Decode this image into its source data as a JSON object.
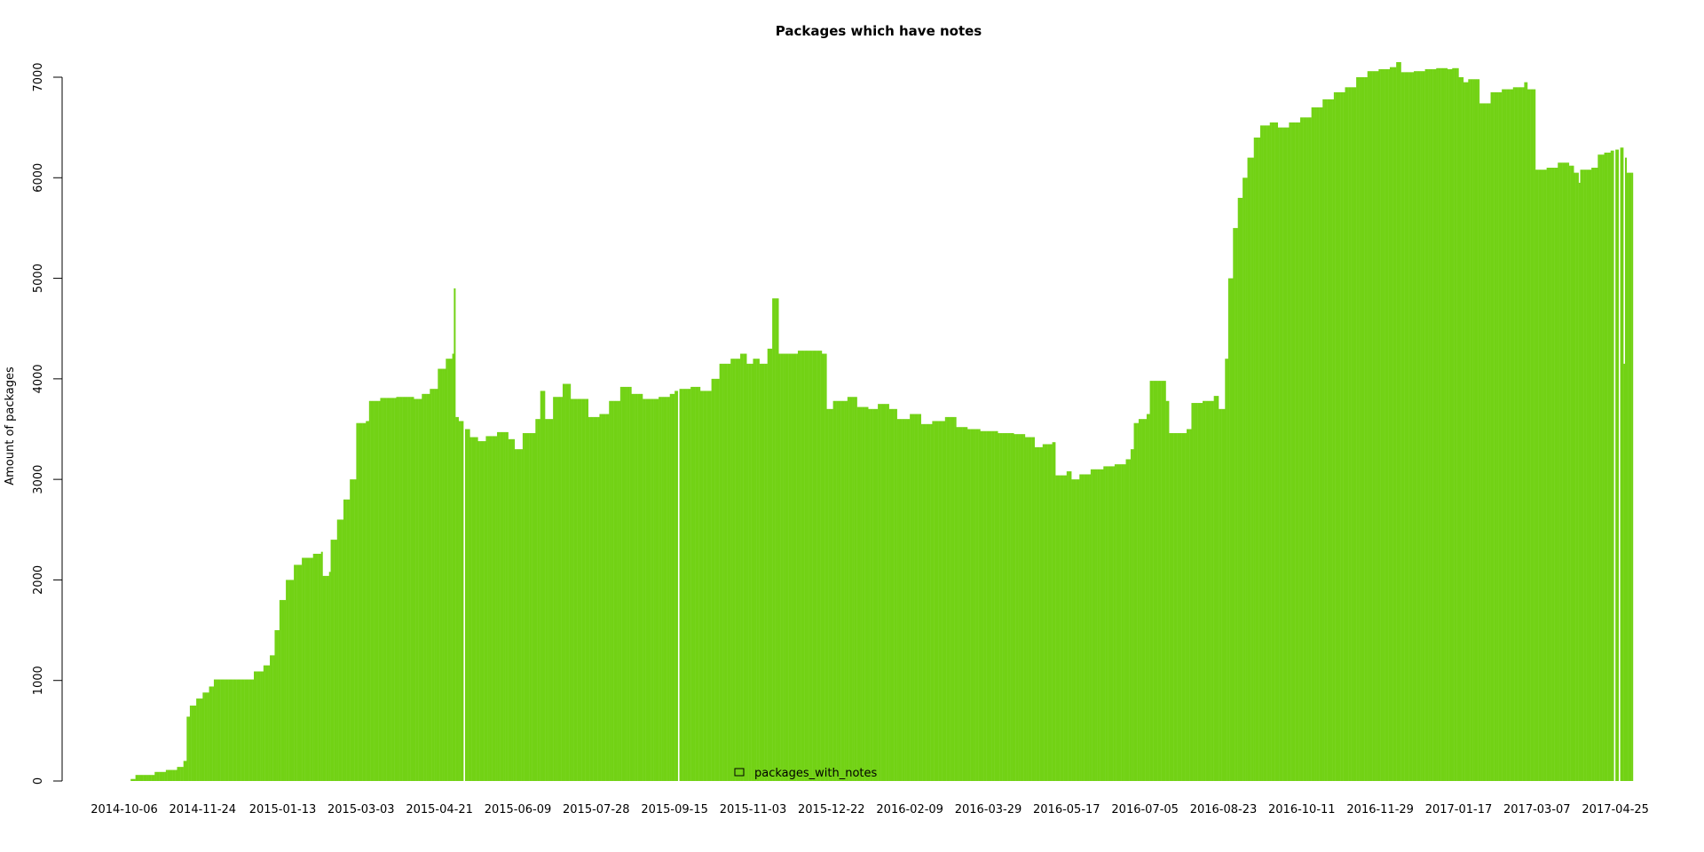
{
  "chart_data": {
    "type": "bar",
    "title": "Packages which have notes",
    "xlabel": "",
    "ylabel": "Amount of packages",
    "ylim": [
      0,
      7000
    ],
    "y_ticks": [
      0,
      1000,
      2000,
      3000,
      4000,
      5000,
      6000,
      7000
    ],
    "x_ticks": [
      "2014-10-06",
      "2014-11-24",
      "2015-01-13",
      "2015-03-03",
      "2015-04-21",
      "2015-06-09",
      "2015-07-28",
      "2015-09-15",
      "2015-11-03",
      "2015-12-22",
      "2016-02-09",
      "2016-03-29",
      "2016-05-17",
      "2016-07-05",
      "2016-08-23",
      "2016-10-11",
      "2016-11-29",
      "2017-01-17",
      "2017-03-07",
      "2017-04-25"
    ],
    "x_range": [
      "2014-10-06",
      "2017-05-06"
    ],
    "bar_color": "#72d215",
    "grid": false,
    "legend": {
      "position": "bottom-center",
      "entries": [
        "packages_with_notes"
      ]
    },
    "series": [
      {
        "name": "packages_with_notes",
        "points": [
          [
            "2014-10-06",
            0
          ],
          [
            "2014-10-10",
            20
          ],
          [
            "2014-10-13",
            60
          ],
          [
            "2014-10-20",
            60
          ],
          [
            "2014-10-25",
            90
          ],
          [
            "2014-11-01",
            110
          ],
          [
            "2014-11-08",
            140
          ],
          [
            "2014-11-12",
            200
          ],
          [
            "2014-11-14",
            640
          ],
          [
            "2014-11-16",
            750
          ],
          [
            "2014-11-20",
            820
          ],
          [
            "2014-11-24",
            880
          ],
          [
            "2014-11-28",
            940
          ],
          [
            "2014-12-01",
            1010
          ],
          [
            "2014-12-23",
            1010
          ],
          [
            "2014-12-26",
            1090
          ],
          [
            "2015-01-01",
            1150
          ],
          [
            "2015-01-05",
            1250
          ],
          [
            "2015-01-08",
            1500
          ],
          [
            "2015-01-11",
            1800
          ],
          [
            "2015-01-15",
            2000
          ],
          [
            "2015-01-20",
            2150
          ],
          [
            "2015-01-25",
            2220
          ],
          [
            "2015-02-01",
            2260
          ],
          [
            "2015-02-06",
            2280
          ],
          [
            "2015-02-07",
            2040
          ],
          [
            "2015-02-11",
            2080
          ],
          [
            "2015-02-12",
            2400
          ],
          [
            "2015-02-16",
            2600
          ],
          [
            "2015-02-20",
            2800
          ],
          [
            "2015-02-24",
            3000
          ],
          [
            "2015-02-28",
            3560
          ],
          [
            "2015-03-06",
            3580
          ],
          [
            "2015-03-08",
            3780
          ],
          [
            "2015-03-15",
            3810
          ],
          [
            "2015-03-25",
            3820
          ],
          [
            "2015-04-05",
            3800
          ],
          [
            "2015-04-10",
            3850
          ],
          [
            "2015-04-15",
            3900
          ],
          [
            "2015-04-20",
            4100
          ],
          [
            "2015-04-25",
            4200
          ],
          [
            "2015-04-29",
            4250
          ],
          [
            "2015-04-30",
            4900
          ],
          [
            "2015-05-01",
            3620
          ],
          [
            "2015-05-03",
            3580
          ],
          [
            "2015-05-06",
            0
          ],
          [
            "2015-05-07",
            3500
          ],
          [
            "2015-05-10",
            3420
          ],
          [
            "2015-05-15",
            3380
          ],
          [
            "2015-05-20",
            3430
          ],
          [
            "2015-05-27",
            3470
          ],
          [
            "2015-06-03",
            3400
          ],
          [
            "2015-06-07",
            3300
          ],
          [
            "2015-06-12",
            3460
          ],
          [
            "2015-06-20",
            3600
          ],
          [
            "2015-06-23",
            3880
          ],
          [
            "2015-06-26",
            3600
          ],
          [
            "2015-07-01",
            3820
          ],
          [
            "2015-07-07",
            3950
          ],
          [
            "2015-07-12",
            3800
          ],
          [
            "2015-07-20",
            3800
          ],
          [
            "2015-07-23",
            3620
          ],
          [
            "2015-07-30",
            3650
          ],
          [
            "2015-08-05",
            3780
          ],
          [
            "2015-08-12",
            3920
          ],
          [
            "2015-08-19",
            3850
          ],
          [
            "2015-08-26",
            3800
          ],
          [
            "2015-09-05",
            3820
          ],
          [
            "2015-09-12",
            3850
          ],
          [
            "2015-09-15",
            3880
          ],
          [
            "2015-09-17",
            0
          ],
          [
            "2015-09-18",
            3900
          ],
          [
            "2015-09-25",
            3920
          ],
          [
            "2015-10-01",
            3880
          ],
          [
            "2015-10-08",
            4000
          ],
          [
            "2015-10-13",
            4150
          ],
          [
            "2015-10-20",
            4200
          ],
          [
            "2015-10-26",
            4250
          ],
          [
            "2015-10-30",
            4150
          ],
          [
            "2015-11-03",
            4200
          ],
          [
            "2015-11-07",
            4150
          ],
          [
            "2015-11-12",
            4300
          ],
          [
            "2015-11-15",
            4800
          ],
          [
            "2015-11-19",
            4250
          ],
          [
            "2015-12-01",
            4280
          ],
          [
            "2015-12-16",
            4250
          ],
          [
            "2015-12-19",
            3700
          ],
          [
            "2015-12-23",
            3780
          ],
          [
            "2016-01-01",
            3820
          ],
          [
            "2016-01-07",
            3720
          ],
          [
            "2016-01-14",
            3700
          ],
          [
            "2016-01-20",
            3750
          ],
          [
            "2016-01-27",
            3700
          ],
          [
            "2016-02-01",
            3600
          ],
          [
            "2016-02-09",
            3650
          ],
          [
            "2016-02-16",
            3550
          ],
          [
            "2016-02-23",
            3580
          ],
          [
            "2016-03-02",
            3620
          ],
          [
            "2016-03-09",
            3520
          ],
          [
            "2016-03-16",
            3500
          ],
          [
            "2016-03-24",
            3480
          ],
          [
            "2016-04-04",
            3460
          ],
          [
            "2016-04-14",
            3450
          ],
          [
            "2016-04-21",
            3420
          ],
          [
            "2016-04-27",
            3320
          ],
          [
            "2016-05-02",
            3350
          ],
          [
            "2016-05-08",
            3370
          ],
          [
            "2016-05-10",
            3040
          ],
          [
            "2016-05-17",
            3080
          ],
          [
            "2016-05-20",
            3000
          ],
          [
            "2016-05-25",
            3050
          ],
          [
            "2016-06-01",
            3100
          ],
          [
            "2016-06-09",
            3130
          ],
          [
            "2016-06-16",
            3150
          ],
          [
            "2016-06-23",
            3200
          ],
          [
            "2016-06-26",
            3300
          ],
          [
            "2016-06-28",
            3560
          ],
          [
            "2016-07-01",
            3600
          ],
          [
            "2016-07-06",
            3650
          ],
          [
            "2016-07-08",
            3980
          ],
          [
            "2016-07-15",
            3980
          ],
          [
            "2016-07-18",
            3780
          ],
          [
            "2016-07-20",
            3460
          ],
          [
            "2016-07-31",
            3500
          ],
          [
            "2016-08-03",
            3760
          ],
          [
            "2016-08-10",
            3780
          ],
          [
            "2016-08-17",
            3830
          ],
          [
            "2016-08-20",
            3700
          ],
          [
            "2016-08-24",
            4200
          ],
          [
            "2016-08-26",
            5000
          ],
          [
            "2016-08-29",
            5500
          ],
          [
            "2016-09-01",
            5800
          ],
          [
            "2016-09-04",
            6000
          ],
          [
            "2016-09-07",
            6200
          ],
          [
            "2016-09-11",
            6400
          ],
          [
            "2016-09-15",
            6520
          ],
          [
            "2016-09-21",
            6550
          ],
          [
            "2016-09-26",
            6500
          ],
          [
            "2016-10-03",
            6550
          ],
          [
            "2016-10-10",
            6600
          ],
          [
            "2016-10-17",
            6700
          ],
          [
            "2016-10-24",
            6780
          ],
          [
            "2016-10-31",
            6850
          ],
          [
            "2016-11-07",
            6900
          ],
          [
            "2016-11-14",
            7000
          ],
          [
            "2016-11-21",
            7060
          ],
          [
            "2016-11-28",
            7080
          ],
          [
            "2016-12-05",
            7100
          ],
          [
            "2016-12-09",
            7150
          ],
          [
            "2016-12-12",
            7050
          ],
          [
            "2016-12-20",
            7060
          ],
          [
            "2016-12-27",
            7080
          ],
          [
            "2017-01-03",
            7090
          ],
          [
            "2017-01-10",
            7080
          ],
          [
            "2017-01-13",
            7090
          ],
          [
            "2017-01-17",
            7000
          ],
          [
            "2017-01-20",
            6950
          ],
          [
            "2017-01-23",
            6980
          ],
          [
            "2017-01-30",
            6740
          ],
          [
            "2017-02-06",
            6850
          ],
          [
            "2017-02-13",
            6880
          ],
          [
            "2017-02-20",
            6900
          ],
          [
            "2017-02-27",
            6950
          ],
          [
            "2017-03-01",
            6880
          ],
          [
            "2017-03-06",
            6080
          ],
          [
            "2017-03-13",
            6100
          ],
          [
            "2017-03-20",
            6150
          ],
          [
            "2017-03-27",
            6120
          ],
          [
            "2017-03-30",
            6050
          ],
          [
            "2017-04-02",
            5950
          ],
          [
            "2017-04-03",
            6080
          ],
          [
            "2017-04-10",
            6100
          ],
          [
            "2017-04-14",
            6230
          ],
          [
            "2017-04-18",
            6250
          ],
          [
            "2017-04-22",
            6270
          ],
          [
            "2017-04-24",
            0
          ],
          [
            "2017-04-25",
            6280
          ],
          [
            "2017-04-27",
            0
          ],
          [
            "2017-04-28",
            6300
          ],
          [
            "2017-04-30",
            4150
          ],
          [
            "2017-05-01",
            6200
          ],
          [
            "2017-05-02",
            6050
          ],
          [
            "2017-05-06",
            6050
          ]
        ]
      }
    ]
  }
}
